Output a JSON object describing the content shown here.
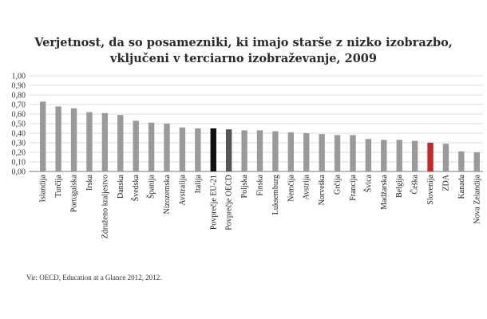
{
  "title_line1": "Verjetnost, da so posamezniki, ki imajo starše z nizko izobrazbo,",
  "title_line2": "vključeni v terciarno izobraževanje, 2009",
  "source": "Vir: OECD, Education at a Glance 2012, 2012.",
  "colors": {
    "default": "#9a9a9a",
    "eu": "#111111",
    "oecd": "#555555",
    "slovenia": "#c62828",
    "grid": "#cfcfcf",
    "axis": "#777777"
  },
  "chart_data": {
    "type": "bar",
    "title": "Verjetnost, da so posamezniki, ki imajo starše z nizko izobrazbo, vključeni v terciarno izobraževanje, 2009",
    "xlabel": "",
    "ylabel": "",
    "ylim": [
      0,
      1
    ],
    "yticks": [
      "0,00",
      "0,10",
      "0,20",
      "0,30",
      "0,40",
      "0,50",
      "0,60",
      "0,70",
      "0,80",
      "0,90",
      "1,00"
    ],
    "grid": true,
    "categories": [
      "Islandija",
      "Turčija",
      "Portugalska",
      "Irska",
      "Združeno kraljestvo",
      "Danska",
      "Švedska",
      "Španija",
      "Nizozemska",
      "Avstralija",
      "Italija",
      "Povprečje EU-21",
      "Povprečje OECD",
      "Poljska",
      "Finska",
      "Luksemburg",
      "Nemčija",
      "Avstrija",
      "Norveška",
      "Grčija",
      "Francija",
      "Švica",
      "Madžarska",
      "Belgija",
      "Češka",
      "Slovenija",
      "ZDA",
      "Kanada",
      "Nova Zelandija"
    ],
    "values": [
      0.73,
      0.68,
      0.66,
      0.62,
      0.61,
      0.59,
      0.53,
      0.51,
      0.5,
      0.46,
      0.45,
      0.45,
      0.44,
      0.43,
      0.43,
      0.42,
      0.41,
      0.4,
      0.39,
      0.38,
      0.38,
      0.34,
      0.33,
      0.33,
      0.32,
      0.3,
      0.29,
      0.21,
      0.2
    ],
    "highlight": {
      "Povprečje EU-21": "eu",
      "Povprečje OECD": "oecd",
      "Slovenija": "slovenia"
    }
  }
}
